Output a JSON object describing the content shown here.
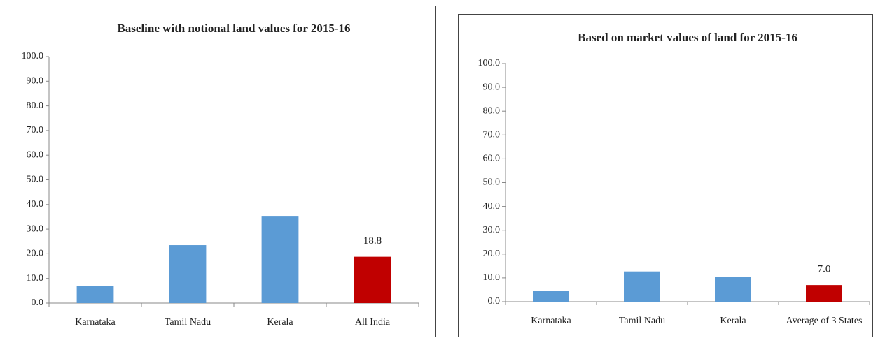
{
  "chart_data": [
    {
      "type": "bar",
      "title": "Baseline with notional land values for 2015-16",
      "categories": [
        "Karnataka",
        "Tamil Nadu",
        "Kerala",
        "All India"
      ],
      "values": [
        6.9,
        23.5,
        35.1,
        18.8
      ],
      "value_labels": [
        null,
        null,
        null,
        "18.8"
      ],
      "colors": [
        "#5b9bd5",
        "#5b9bd5",
        "#5b9bd5",
        "#c00000"
      ],
      "ylim": [
        0,
        100
      ],
      "yticks": [
        {
          "value": 0,
          "label": "0.0"
        },
        {
          "value": 10,
          "label": "10.0"
        },
        {
          "value": 20,
          "label": "20.0"
        },
        {
          "value": 30,
          "label": "30.0"
        },
        {
          "value": 40,
          "label": "40.0"
        },
        {
          "value": 50,
          "label": "50.0"
        },
        {
          "value": 60,
          "label": "60.0"
        },
        {
          "value": 70,
          "label": "70.0"
        },
        {
          "value": 80,
          "label": "80.0"
        },
        {
          "value": 90,
          "label": "90.0"
        },
        {
          "value": 100,
          "label": "100.0"
        }
      ]
    },
    {
      "type": "bar",
      "title": "Based on market values of land for 2015-16",
      "categories": [
        "Karnataka",
        "Tamil Nadu",
        "Kerala",
        "Average of 3 States"
      ],
      "values": [
        4.4,
        12.7,
        10.3,
        7.0
      ],
      "value_labels": [
        null,
        null,
        null,
        "7.0"
      ],
      "colors": [
        "#5b9bd5",
        "#5b9bd5",
        "#5b9bd5",
        "#c00000"
      ],
      "ylim": [
        0,
        100
      ],
      "yticks": [
        {
          "value": 0,
          "label": "0.0"
        },
        {
          "value": 10,
          "label": "10.0"
        },
        {
          "value": 20,
          "label": "20.0"
        },
        {
          "value": 30,
          "label": "30.0"
        },
        {
          "value": 40,
          "label": "40.0"
        },
        {
          "value": 50,
          "label": "50.0"
        },
        {
          "value": 60,
          "label": "60.0"
        },
        {
          "value": 70,
          "label": "70.0"
        },
        {
          "value": 80,
          "label": "80.0"
        },
        {
          "value": 90,
          "label": "90.0"
        },
        {
          "value": 100,
          "label": "100.0"
        }
      ]
    }
  ]
}
